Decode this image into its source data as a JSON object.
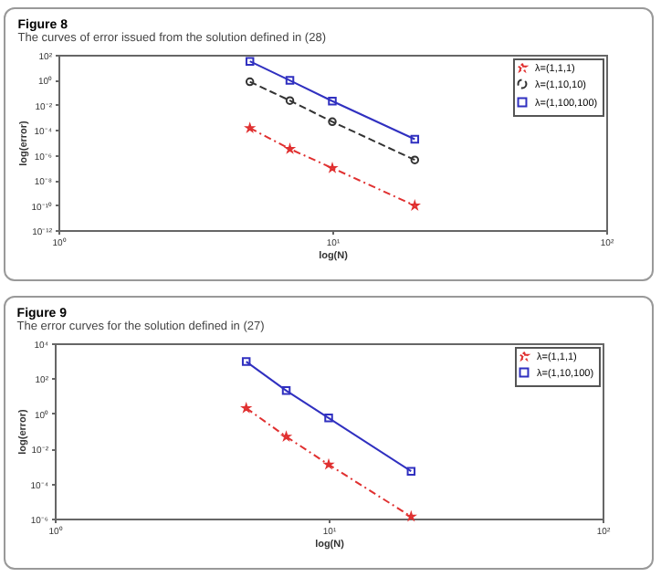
{
  "chart_data": [
    {
      "type": "line",
      "title": "Figure 8",
      "subtitle": "The curves of error issued from the solution defined in (28)",
      "xlabel": "log(N)",
      "ylabel": "log(error)",
      "log": "xy",
      "legend": "top right",
      "x": [
        5,
        7,
        10,
        20
      ],
      "xlim": [
        1,
        100
      ],
      "xticks": [
        {
          "value": 1,
          "label": "10⁰"
        },
        {
          "value": 10,
          "label": "10¹"
        },
        {
          "value": 100,
          "label": "10²"
        }
      ],
      "ylim": [
        1e-12,
        100
      ],
      "yticks": [
        {
          "value": 1e-12,
          "label": "10⁻¹²"
        },
        {
          "value": 1e-10,
          "label": "10⁻¹⁰"
        },
        {
          "value": 1e-08,
          "label": "10⁻⁸"
        },
        {
          "value": 1e-06,
          "label": "10⁻⁶"
        },
        {
          "value": 0.0001,
          "label": "10⁻⁴"
        },
        {
          "value": 0.01,
          "label": "10⁻²"
        },
        {
          "value": 1,
          "label": "10⁰"
        },
        {
          "value": 100,
          "label": "10²"
        }
      ],
      "series": [
        {
          "name": "λ=(1,1,1)",
          "color": "#e03030",
          "marker": "star",
          "line_style": "dashdot",
          "values": [
            0.00014,
            3e-06,
            9e-08,
            9e-11
          ]
        },
        {
          "name": "λ=(1,10,10)",
          "color": "#333333",
          "marker": "circle",
          "line_style": "dashed",
          "values": [
            0.7,
            0.022,
            0.00045,
            4e-07
          ]
        },
        {
          "name": "λ=(1,100,100)",
          "color": "#3030c0",
          "marker": "square",
          "line_style": "solid",
          "values": [
            30,
            0.9,
            0.02,
            1.8e-05
          ]
        }
      ]
    },
    {
      "type": "line",
      "title": "Figure 9",
      "subtitle": "The error curves for the solution defined in (27)",
      "xlabel": "log(N)",
      "ylabel": "log(error)",
      "log": "xy",
      "legend": "top right",
      "x": [
        5,
        7,
        10,
        20
      ],
      "xlim": [
        1,
        100
      ],
      "xticks": [
        {
          "value": 1,
          "label": "10⁰"
        },
        {
          "value": 10,
          "label": "10¹"
        },
        {
          "value": 100,
          "label": "10²"
        }
      ],
      "ylim": [
        1e-06,
        10000
      ],
      "yticks": [
        {
          "value": 1e-06,
          "label": "10⁻⁶"
        },
        {
          "value": 0.0001,
          "label": "10⁻⁴"
        },
        {
          "value": 0.01,
          "label": "10⁻²"
        },
        {
          "value": 1,
          "label": "10⁰"
        },
        {
          "value": 100,
          "label": "10²"
        },
        {
          "value": 10000,
          "label": "10⁴"
        }
      ],
      "series": [
        {
          "name": "λ=(1,1,1)",
          "color": "#e03030",
          "marker": "star",
          "line_style": "dashdot",
          "values": [
            2,
            0.047,
            0.0012,
            1.3e-06
          ]
        },
        {
          "name": "λ=(1,10,100)",
          "color": "#3030c0",
          "marker": "square",
          "line_style": "solid",
          "values": [
            900,
            20,
            0.55,
            0.0005
          ]
        }
      ]
    }
  ]
}
